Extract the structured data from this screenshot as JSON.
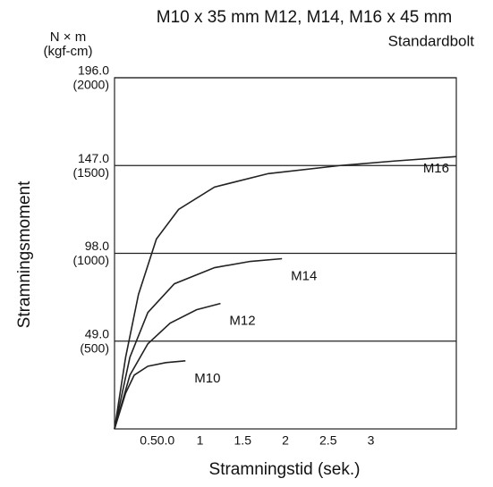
{
  "chart_data": {
    "type": "line",
    "title": "M10 x 35 mm M12, M14, M16 x 45 mm",
    "subtitle": "Standardbolt",
    "y_unit": "N × m",
    "y2_unit": "(kgf-cm)",
    "ylabel": "Stramningsmoment",
    "xlabel": "Stramningstid (sek.)",
    "xlim": [
      0,
      4
    ],
    "xticks": [
      {
        "value": 0.5,
        "label": "0.50.0"
      },
      1.0,
      1.5,
      2.0,
      2.5,
      3.0
    ],
    "ylim": [
      0,
      196
    ],
    "yticks": [
      {
        "value": 49,
        "label": "49.0"
      },
      {
        "value": 98,
        "label": "98.0"
      },
      {
        "value": 147,
        "label": "147.0"
      },
      {
        "value": 196,
        "label": "196.0"
      }
    ],
    "y2lim": [
      0,
      2000
    ],
    "y2ticks": [
      {
        "value": 500,
        "label": "(500)"
      },
      {
        "value": 1000,
        "label": "(1000)"
      },
      {
        "value": 1500,
        "label": "(1500)"
      },
      {
        "value": 2000,
        "label": "(2000)"
      }
    ],
    "grid": true,
    "series": [
      {
        "name": "M10",
        "color": "#222222",
        "x": [
          0,
          0.13,
          0.23,
          0.39,
          0.6,
          0.83
        ],
        "values": [
          0,
          20,
          30,
          35,
          37,
          38
        ]
      },
      {
        "name": "M12",
        "color": "#222222",
        "x": [
          0,
          0.18,
          0.39,
          0.65,
          0.96,
          1.24
        ],
        "values": [
          0,
          30,
          47.5,
          59,
          66.5,
          70
        ]
      },
      {
        "name": "M14",
        "color": "#222222",
        "x": [
          0,
          0.18,
          0.39,
          0.7,
          1.17,
          1.59,
          1.96
        ],
        "values": [
          0,
          40,
          65,
          81,
          90,
          93.5,
          95
        ]
      },
      {
        "name": "M16",
        "color": "#222222",
        "x": [
          0,
          0.13,
          0.28,
          0.49,
          0.75,
          1.17,
          1.8,
          2.64,
          3.27,
          4.0
        ],
        "values": [
          0,
          40,
          75,
          106,
          122.5,
          135,
          142.5,
          147,
          149.5,
          152
        ]
      }
    ]
  }
}
